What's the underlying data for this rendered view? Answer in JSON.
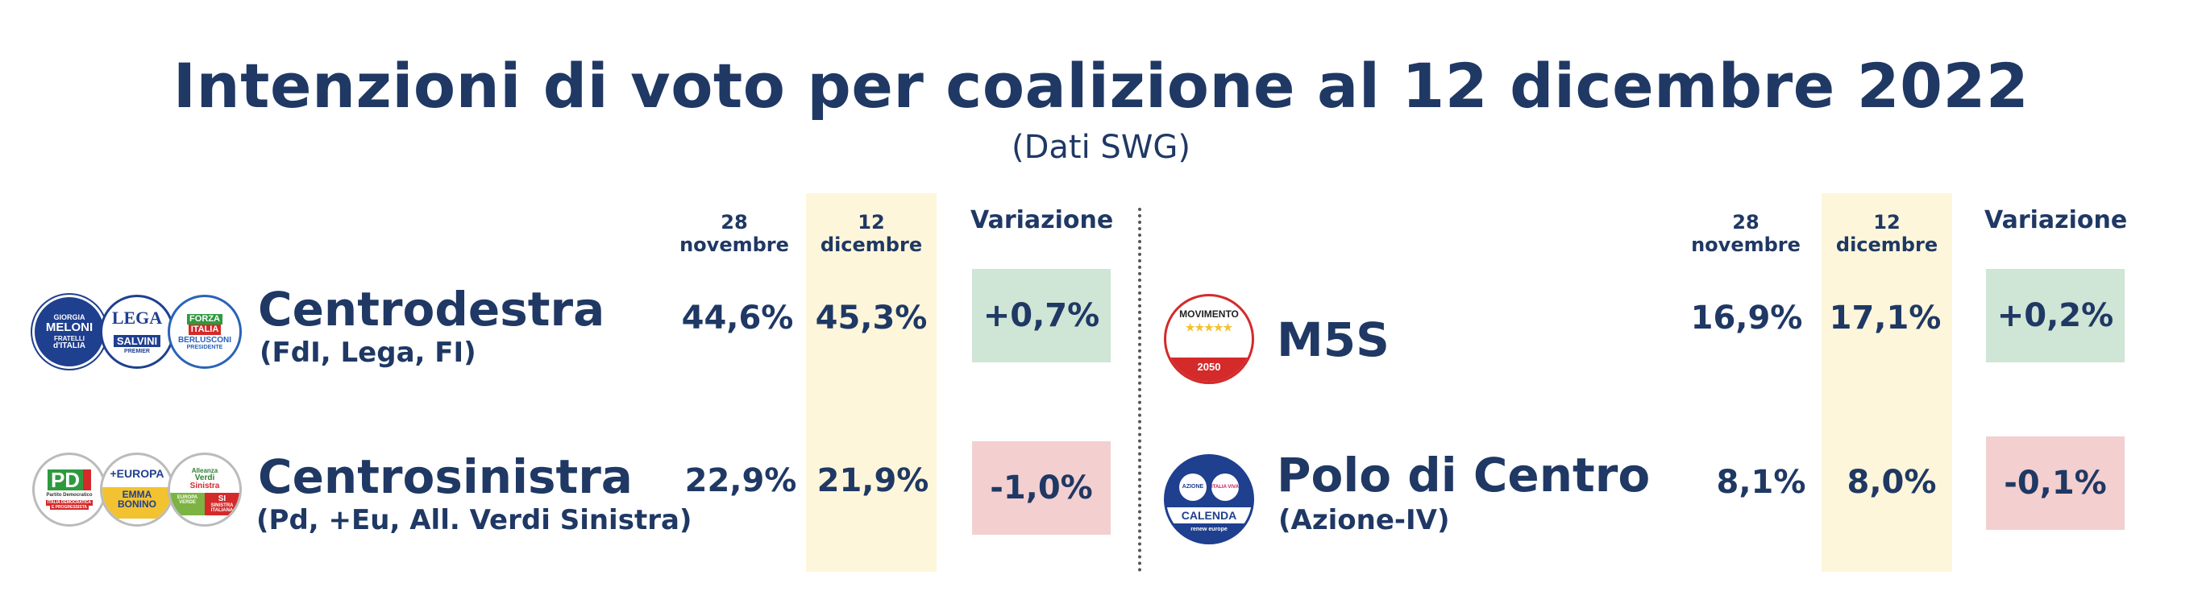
{
  "title": "Intenzioni di voto per coalizione al 12 dicembre 2022",
  "subtitle": "(Dati SWG)",
  "colors": {
    "positive": "#cfe5d5",
    "negative": "#f3cfd0",
    "highlight": "#fdf6da",
    "text": "#1f3864"
  },
  "chart_data": {
    "type": "table",
    "columns": [
      "28 novembre",
      "12 dicembre",
      "Variazione"
    ],
    "rows": [
      {
        "name": "Centrodestra",
        "sub": "(FdI, Lega, FI)",
        "values": [
          "44,6%",
          "45,3%"
        ],
        "change": "+0,7%",
        "nov": 44.6,
        "dec": 45.3,
        "delta": 0.7
      },
      {
        "name": "Centrosinistra",
        "sub": "(Pd, +Eu, All. Verdi Sinistra)",
        "values": [
          "22,9%",
          "21,9%"
        ],
        "change": "-1,0%",
        "nov": 22.9,
        "dec": 21.9,
        "delta": -1.0
      },
      {
        "name": "M5S",
        "sub": "",
        "values": [
          "16,9%",
          "17,1%"
        ],
        "change": "+0,2%",
        "nov": 16.9,
        "dec": 17.1,
        "delta": 0.2
      },
      {
        "name": "Polo di Centro",
        "sub": "(Azione-IV)",
        "values": [
          "8,1%",
          "8,0%"
        ],
        "change": "-0,1%",
        "nov": 8.1,
        "dec": 8.0,
        "delta": -0.1
      }
    ]
  },
  "logos": {
    "fdi": [
      "GIORGIA",
      "MELONI",
      "FRATELLI",
      "d'ITALIA"
    ],
    "lega": [
      "LEGA",
      "SALVINI",
      "PREMIER"
    ],
    "fi": [
      "FORZA",
      "ITALIA",
      "BERLUSCONI",
      "PRESIDENTE"
    ],
    "pd": [
      "PD",
      "Partito Democratico",
      "ITALIA DEMOCRATICA",
      "E PROGRESSISTA"
    ],
    "piu_europa": [
      "+EUROPA",
      "EMMA",
      "BONINO"
    ],
    "avs": [
      "Alleanza",
      "Verdi",
      "Sinistra",
      "EUROPA",
      "VERDE",
      "SI",
      "SINISTRA",
      "ITALIANA"
    ],
    "m5s": [
      "MOVIMENTO",
      "2050"
    ],
    "azione": [
      "AZIONE",
      "ITALIA VIVA",
      "CALENDA",
      "renew europe"
    ]
  }
}
